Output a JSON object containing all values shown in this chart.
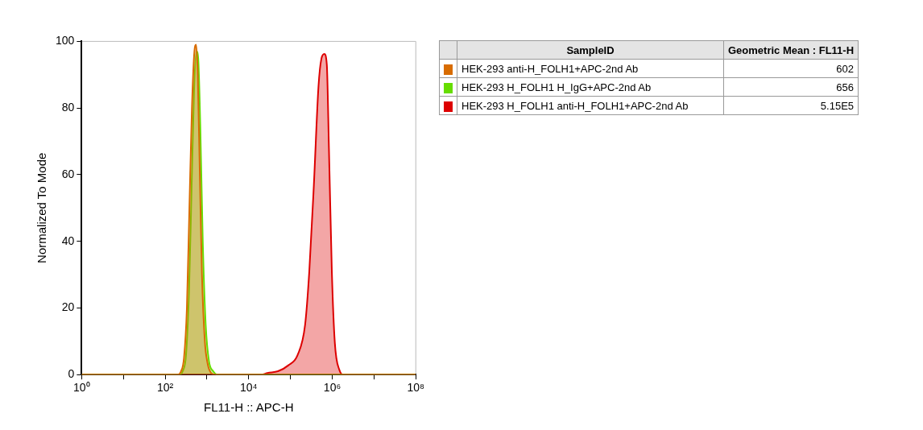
{
  "chart_data": {
    "type": "area",
    "xlabel": "FL11-H :: APC-H",
    "ylabel": "Normalized To Mode",
    "log": "x",
    "legend": "right",
    "legend_title": "SampleID",
    "annotations": [
      "Geometric Mean : FL11-H",
      "602",
      "656",
      "5.15E5"
    ],
    "xlim": [
      1,
      100000000
    ],
    "ylim": [
      0,
      100
    ],
    "xticks": [
      {
        "value": 1,
        "label": "10⁰"
      },
      {
        "value": 10,
        "label": null
      },
      {
        "value": 100,
        "label": "10²"
      },
      {
        "value": 1000,
        "label": null
      },
      {
        "value": 10000,
        "label": "10⁴"
      },
      {
        "value": 100000,
        "label": null
      },
      {
        "value": 1000000,
        "label": "10⁶"
      },
      {
        "value": 10000000,
        "label": null
      },
      {
        "value": 100000000,
        "label": "10⁸"
      }
    ],
    "yticks": [
      0,
      20,
      40,
      60,
      80,
      100
    ],
    "series": [
      {
        "name": "HEK-293 anti-H_FOLH1+APC-2nd Ab",
        "color": "#d86c00",
        "x": [
          1,
          200,
          240,
          282,
          331,
          380,
          437,
          501,
          550,
          603,
          676,
          759,
          891,
          1050,
          1260,
          1580,
          100000000
        ],
        "values": [
          0,
          0,
          1,
          5,
          20,
          50,
          80,
          97,
          99,
          90,
          60,
          30,
          10,
          3,
          0.5,
          0,
          0
        ]
      },
      {
        "name": "HEK-293 H_FOLH1 H_IgG+APC-2nd Ab",
        "color": "#66dd00",
        "x": [
          1,
          224,
          263,
          316,
          372,
          427,
          490,
          562,
          617,
          692,
          794,
          933,
          1120,
          1410,
          1780,
          100000000
        ],
        "values": [
          0,
          0,
          1,
          6,
          25,
          55,
          85,
          97,
          95,
          75,
          40,
          15,
          4,
          1,
          0,
          0
        ]
      },
      {
        "name": "HEK-293 H_FOLH1 anti-H_FOLH1+APC-2nd Ab",
        "color": "#dd0000",
        "x": [
          1,
          20000,
          28200,
          50100,
          89100,
          148000,
          224000,
          282000,
          363000,
          468000,
          550000,
          646000,
          741000,
          832000,
          977000,
          1150000,
          1480000,
          1860000,
          100000000
        ],
        "values": [
          0,
          0,
          0.5,
          1,
          2.8,
          5.9,
          15,
          31,
          57,
          86.5,
          94.8,
          96.2,
          93,
          68,
          31,
          9.7,
          1.4,
          0,
          0
        ]
      }
    ]
  }
}
